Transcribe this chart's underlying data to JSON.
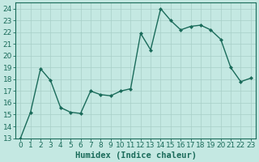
{
  "x": [
    0,
    1,
    2,
    3,
    4,
    5,
    6,
    7,
    8,
    9,
    10,
    11,
    12,
    13,
    14,
    15,
    16,
    17,
    18,
    19,
    20,
    21,
    22,
    23
  ],
  "y": [
    13,
    15.2,
    18.9,
    17.9,
    15.6,
    15.2,
    15.1,
    17.0,
    16.7,
    16.6,
    17.0,
    17.2,
    21.9,
    20.5,
    24.0,
    23.0,
    22.2,
    22.5,
    22.6,
    22.2,
    21.4,
    19.0,
    17.8,
    18.1
  ],
  "line_color": "#1a6b5a",
  "bg_color": "#c4e8e2",
  "grid_color": "#a8cfc8",
  "xlabel": "Humidex (Indice chaleur)",
  "ylim": [
    13,
    24.5
  ],
  "yticks": [
    13,
    14,
    15,
    16,
    17,
    18,
    19,
    20,
    21,
    22,
    23,
    24
  ],
  "xlim": [
    -0.5,
    23.5
  ],
  "markersize": 2.0,
  "linewidth": 1.0,
  "tick_fontsize": 6.5,
  "xlabel_fontsize": 7.5
}
